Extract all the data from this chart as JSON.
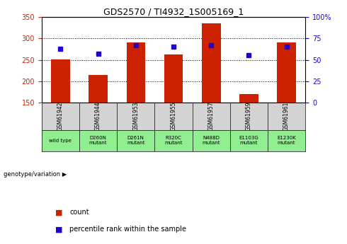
{
  "title": "GDS2570 / TI4932_1S005169_1",
  "samples": [
    "GSM61942",
    "GSM61944",
    "GSM61953",
    "GSM61955",
    "GSM61957",
    "GSM61959",
    "GSM61961"
  ],
  "genotypes": [
    "wild type",
    "D260N\nmutant",
    "D261N\nmutant",
    "R320C\nmutant",
    "N488D\nmutant",
    "E1103G\nmutant",
    "E1230K\nmutant"
  ],
  "counts": [
    251,
    215,
    291,
    262,
    335,
    170,
    290
  ],
  "percentiles": [
    63,
    57,
    67,
    65,
    67,
    55,
    65
  ],
  "bar_color": "#cc2200",
  "dot_color": "#2200cc",
  "ylim_left": [
    150,
    350
  ],
  "ylim_right": [
    0,
    100
  ],
  "yticks_left": [
    150,
    200,
    250,
    300,
    350
  ],
  "yticks_right": [
    0,
    25,
    50,
    75,
    100
  ],
  "ytick_labels_right": [
    "0",
    "25",
    "50",
    "75",
    "100%"
  ],
  "bar_width": 0.5,
  "bg_plot": "#ffffff",
  "bg_label_top": "#d3d3d3",
  "bg_label_bottom": "#90ee90",
  "grid_color": "#000000",
  "legend_count": "count",
  "legend_pct": "percentile rank within the sample",
  "genotype_label": "genotype/variation",
  "left_tick_color": "#cc2200",
  "right_tick_color": "#2200cc",
  "ymin": 150
}
